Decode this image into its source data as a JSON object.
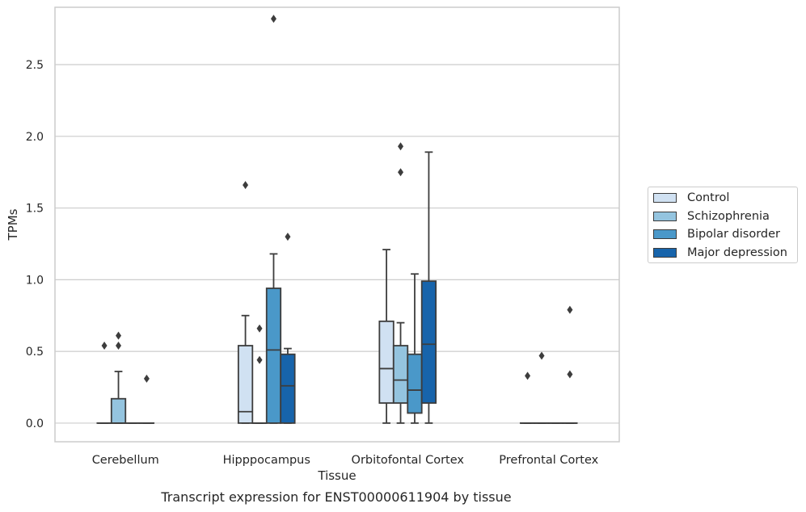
{
  "chart_data": {
    "type": "box",
    "caption": "Transcript expression for ENST00000611904 by tissue",
    "xlabel": "Tissue",
    "ylabel": "TPMs",
    "ylim": [
      -0.13,
      2.9
    ],
    "yticks": [
      0.0,
      0.5,
      1.0,
      1.5,
      2.0,
      2.5
    ],
    "ytick_labels": [
      "0.0",
      "0.5",
      "1.0",
      "1.5",
      "2.0",
      "2.5"
    ],
    "grid": "horizontal",
    "legend_position": "right",
    "categories": [
      "Cerebellum",
      "Hipppocampus",
      "Orbitofontal Cortex",
      "Prefrontal Cortex"
    ],
    "series": [
      {
        "name": "Control",
        "color": "#d0e1f2",
        "boxes": [
          {
            "category": "Cerebellum",
            "whisker_low": 0.0,
            "q1": 0.0,
            "median": 0.0,
            "q3": 0.0,
            "whisker_high": 0.0,
            "outliers": [
              0.54
            ]
          },
          {
            "category": "Hipppocampus",
            "whisker_low": 0.0,
            "q1": 0.0,
            "median": 0.08,
            "q3": 0.54,
            "whisker_high": 0.75,
            "outliers": [
              1.66
            ]
          },
          {
            "category": "Orbitofontal Cortex",
            "whisker_low": 0.0,
            "q1": 0.14,
            "median": 0.38,
            "q3": 0.71,
            "whisker_high": 1.21,
            "outliers": []
          },
          {
            "category": "Prefrontal Cortex",
            "whisker_low": 0.0,
            "q1": 0.0,
            "median": 0.0,
            "q3": 0.0,
            "whisker_high": 0.0,
            "outliers": [
              0.33
            ]
          }
        ]
      },
      {
        "name": "Schizophrenia",
        "color": "#94c4df",
        "boxes": [
          {
            "category": "Cerebellum",
            "whisker_low": 0.0,
            "q1": 0.0,
            "median": 0.0,
            "q3": 0.17,
            "whisker_high": 0.36,
            "outliers": [
              0.54,
              0.61
            ]
          },
          {
            "category": "Hipppocampus",
            "whisker_low": 0.0,
            "q1": 0.0,
            "median": 0.0,
            "q3": 0.0,
            "whisker_high": 0.0,
            "outliers": [
              0.44,
              0.66
            ]
          },
          {
            "category": "Orbitofontal Cortex",
            "whisker_low": 0.0,
            "q1": 0.14,
            "median": 0.3,
            "q3": 0.54,
            "whisker_high": 0.7,
            "outliers": [
              1.75,
              1.93
            ]
          },
          {
            "category": "Prefrontal Cortex",
            "whisker_low": 0.0,
            "q1": 0.0,
            "median": 0.0,
            "q3": 0.0,
            "whisker_high": 0.0,
            "outliers": [
              0.47
            ]
          }
        ]
      },
      {
        "name": "Bipolar disorder",
        "color": "#4a98c9",
        "boxes": [
          {
            "category": "Cerebellum",
            "whisker_low": 0.0,
            "q1": 0.0,
            "median": 0.0,
            "q3": 0.0,
            "whisker_high": 0.0,
            "outliers": []
          },
          {
            "category": "Hipppocampus",
            "whisker_low": 0.0,
            "q1": 0.0,
            "median": 0.51,
            "q3": 0.94,
            "whisker_high": 1.18,
            "outliers": [
              2.82
            ]
          },
          {
            "category": "Orbitofontal Cortex",
            "whisker_low": 0.0,
            "q1": 0.07,
            "median": 0.23,
            "q3": 0.48,
            "whisker_high": 1.04,
            "outliers": []
          },
          {
            "category": "Prefrontal Cortex",
            "whisker_low": 0.0,
            "q1": 0.0,
            "median": 0.0,
            "q3": 0.0,
            "whisker_high": 0.0,
            "outliers": []
          }
        ]
      },
      {
        "name": "Major depression",
        "color": "#1764ab",
        "boxes": [
          {
            "category": "Cerebellum",
            "whisker_low": 0.0,
            "q1": 0.0,
            "median": 0.0,
            "q3": 0.0,
            "whisker_high": 0.0,
            "outliers": [
              0.31
            ]
          },
          {
            "category": "Hipppocampus",
            "whisker_low": 0.0,
            "q1": 0.0,
            "median": 0.26,
            "q3": 0.48,
            "whisker_high": 0.52,
            "outliers": [
              1.3
            ]
          },
          {
            "category": "Orbitofontal Cortex",
            "whisker_low": 0.0,
            "q1": 0.14,
            "median": 0.55,
            "q3": 0.99,
            "whisker_high": 1.89,
            "outliers": []
          },
          {
            "category": "Prefrontal Cortex",
            "whisker_low": 0.0,
            "q1": 0.0,
            "median": 0.0,
            "q3": 0.0,
            "whisker_high": 0.0,
            "outliers": [
              0.34,
              0.79
            ]
          }
        ]
      }
    ]
  }
}
